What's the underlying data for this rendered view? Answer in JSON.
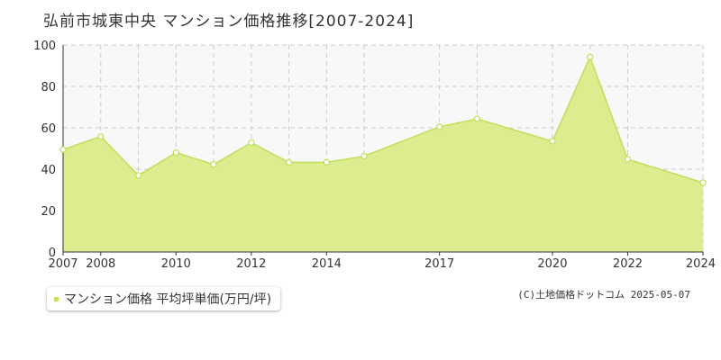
{
  "header": {
    "title": "弘前市城東中央 マンション価格推移[2007-2024]"
  },
  "legend": {
    "label": "マンション価格 平均坪単価(万円/坪)"
  },
  "footer": {
    "source": "(C)土地価格ドットコム 2025-05-07"
  },
  "colors": {
    "area_fill": "#dcec8f",
    "line": "#bfe05a",
    "marker_fill": "#ffffff",
    "legend_swatch": "#c3e35a",
    "grid": "#cccccc",
    "plot_bg": "#f8f8f8"
  },
  "chart_data": {
    "type": "area",
    "x": [
      2007,
      2008,
      2009,
      2010,
      2011,
      2012,
      2013,
      2014,
      2015,
      2017,
      2018,
      2020,
      2021,
      2022,
      2024
    ],
    "series": [
      {
        "name": "マンション価格 平均坪単価(万円/坪)",
        "values": [
          49.5,
          55.8,
          37,
          48,
          42.3,
          52.8,
          43.3,
          43.3,
          46.3,
          60.5,
          64.3,
          53.5,
          94.2,
          44.8,
          33.5
        ]
      }
    ],
    "x_tick_labels": [
      "2007",
      "2008",
      "2010",
      "2012",
      "2014",
      "2017",
      "2020",
      "2022",
      "2024"
    ],
    "x_tick_positions": [
      2007,
      2008,
      2010,
      2012,
      2014,
      2017,
      2020,
      2022,
      2024
    ],
    "y_ticks": [
      0,
      20,
      40,
      60,
      80,
      100
    ],
    "ylim": [
      0,
      100
    ],
    "grid": true,
    "legend_position": "bottom-left"
  }
}
